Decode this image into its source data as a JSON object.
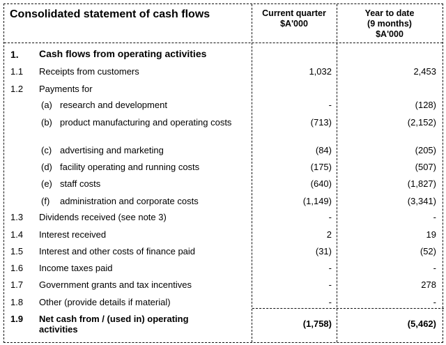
{
  "table": {
    "title": "Consolidated statement of cash flows",
    "col1_header": [
      "Current quarter",
      "$A'000"
    ],
    "col2_header": [
      "Year to date",
      "(9 months)",
      "$A'000"
    ],
    "rows": [
      {
        "num": "1.",
        "label": "Cash flows from operating activities",
        "current": "",
        "ytd": ""
      },
      {
        "num": "1.1",
        "label": "Receipts from customers",
        "current": "1,032",
        "ytd": "2,453"
      },
      {
        "num": "1.2",
        "label": "Payments for",
        "current": "",
        "ytd": ""
      },
      {
        "sub": "(a)",
        "label": "research and development",
        "current": "-",
        "ytd": "(128)"
      },
      {
        "sub": "(b)",
        "label": "product manufacturing and operating costs",
        "current": "(713)",
        "ytd": "(2,152)"
      },
      {
        "sub": "(c)",
        "label": "advertising and marketing",
        "current": "(84)",
        "ytd": "(205)"
      },
      {
        "sub": "(d)",
        "label": "facility operating and running costs",
        "current": "(175)",
        "ytd": "(507)"
      },
      {
        "sub": "(e)",
        "label": "staff costs",
        "current": "(640)",
        "ytd": "(1,827)"
      },
      {
        "sub": "(f)",
        "label": "administration and corporate costs",
        "current": "(1,149)",
        "ytd": "(3,341)"
      },
      {
        "num": "1.3",
        "label": "Dividends received (see note 3)",
        "current": "-",
        "ytd": "-"
      },
      {
        "num": "1.4",
        "label": "Interest received",
        "current": "2",
        "ytd": "19"
      },
      {
        "num": "1.5",
        "label": "Interest and other costs of finance paid",
        "current": "(31)",
        "ytd": "(52)"
      },
      {
        "num": "1.6",
        "label": "Income taxes paid",
        "current": "-",
        "ytd": "-"
      },
      {
        "num": "1.7",
        "label": "Government grants and tax incentives",
        "current": "-",
        "ytd": "278"
      },
      {
        "num": "1.8",
        "label": "Other (provide details if material)",
        "current": "-",
        "ytd": "-"
      },
      {
        "num": "1.9",
        "label": "Net cash from / (used in) operating activities",
        "current": "(1,758)",
        "ytd": "(5,462)"
      }
    ]
  }
}
